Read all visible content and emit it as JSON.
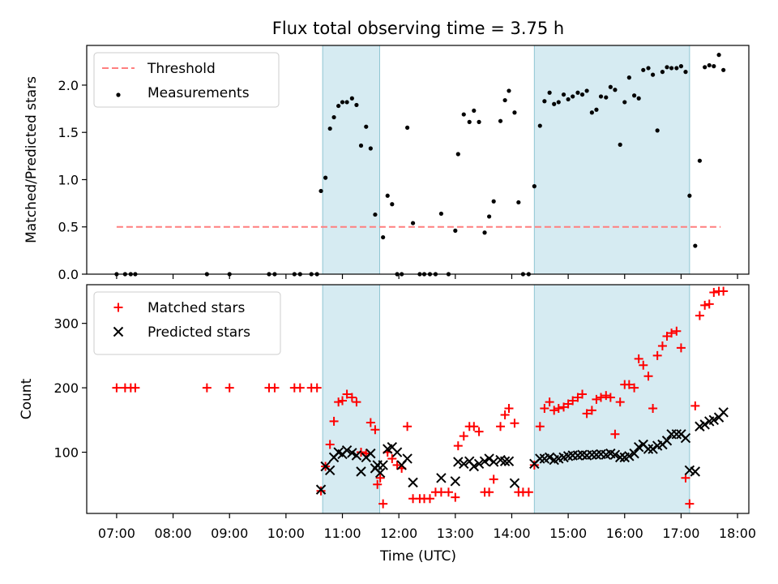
{
  "figure": {
    "title": "Flux total observing time = 3.75 h",
    "xlabel": "Time (UTC)",
    "x_ticks": [
      "07:00",
      "08:00",
      "09:00",
      "10:00",
      "11:00",
      "12:00",
      "13:00",
      "14:00",
      "15:00",
      "16:00",
      "17:00",
      "18:00"
    ],
    "x_tick_hours": [
      7,
      8,
      9,
      10,
      11,
      12,
      13,
      14,
      15,
      16,
      17,
      18
    ],
    "x_range_hours": [
      6.47,
      18.2
    ],
    "shaded_intervals_hours": [
      [
        10.65,
        11.66
      ],
      [
        14.4,
        17.15
      ]
    ],
    "shade_color": "#add8e6",
    "grid": false
  },
  "chart_data": [
    {
      "type": "scatter",
      "ylabel": "Matched/Predicted stars",
      "ylim": [
        0,
        2.42
      ],
      "y_ticks": [
        "0.0",
        "0.5",
        "1.0",
        "1.5",
        "2.0"
      ],
      "y_tick_values": [
        0,
        0.5,
        1.0,
        1.5,
        2.0
      ],
      "legend_position": "top-left",
      "threshold": {
        "name": "Threshold",
        "value": 0.5,
        "x_range": [
          7.0,
          17.7
        ],
        "color": "#ff7f7f",
        "style": "dashed"
      },
      "series": [
        {
          "name": "Measurements",
          "color": "#000000",
          "marker": "dot",
          "x": [
            7.0,
            7.15,
            7.25,
            7.33,
            8.6,
            9.0,
            9.7,
            9.8,
            10.15,
            10.25,
            10.45,
            10.55,
            10.62,
            10.7,
            10.78,
            10.85,
            10.93,
            11.0,
            11.08,
            11.17,
            11.25,
            11.33,
            11.42,
            11.5,
            11.58,
            11.72,
            11.8,
            11.88,
            11.97,
            12.05,
            12.15,
            12.25,
            12.37,
            12.45,
            12.55,
            12.65,
            12.75,
            12.88,
            13.0,
            13.05,
            13.15,
            13.25,
            13.33,
            13.42,
            13.52,
            13.6,
            13.68,
            13.8,
            13.88,
            13.95,
            14.05,
            14.12,
            14.2,
            14.3,
            14.4,
            14.5,
            14.58,
            14.67,
            14.75,
            14.83,
            14.92,
            15.0,
            15.08,
            15.17,
            15.25,
            15.33,
            15.42,
            15.5,
            15.58,
            15.67,
            15.75,
            15.83,
            15.92,
            16.0,
            16.08,
            16.17,
            16.25,
            16.33,
            16.42,
            16.5,
            16.58,
            16.67,
            16.75,
            16.83,
            16.92,
            17.0,
            17.08,
            17.15,
            17.25,
            17.33,
            17.42,
            17.5,
            17.58,
            17.67,
            17.75
          ],
          "y": [
            0,
            0,
            0,
            0,
            0,
            0,
            0,
            0,
            0,
            0,
            0,
            0,
            0.88,
            1.02,
            1.54,
            1.66,
            1.78,
            1.82,
            1.82,
            1.86,
            1.79,
            1.36,
            1.56,
            1.33,
            0.63,
            0.39,
            0.83,
            0.74,
            0,
            0,
            1.55,
            0.54,
            0,
            0,
            0,
            0,
            0.64,
            0,
            0.46,
            1.27,
            1.69,
            1.61,
            1.73,
            1.61,
            0.44,
            0.61,
            0.77,
            1.62,
            1.84,
            1.94,
            1.71,
            0.76,
            0,
            0,
            0.93,
            1.57,
            1.83,
            1.92,
            1.8,
            1.82,
            1.9,
            1.85,
            1.88,
            1.92,
            1.9,
            1.94,
            1.71,
            1.74,
            1.88,
            1.87,
            1.98,
            1.95,
            1.37,
            1.82,
            2.08,
            1.89,
            1.86,
            2.16,
            2.18,
            2.11,
            1.52,
            2.14,
            2.19,
            2.18,
            2.18,
            2.2,
            2.14,
            0.83,
            0.3,
            1.2,
            2.19,
            2.21,
            2.2,
            2.32,
            2.16
          ]
        }
      ]
    },
    {
      "type": "scatter",
      "ylabel": "Count",
      "ylim": [
        5,
        360
      ],
      "y_ticks": [
        "100",
        "200",
        "300"
      ],
      "y_tick_values": [
        100,
        200,
        300
      ],
      "legend_position": "top-left",
      "series": [
        {
          "name": "Matched stars",
          "color": "#ff0000",
          "marker": "plus",
          "x": [
            7.0,
            7.15,
            7.25,
            7.33,
            8.6,
            9.0,
            9.7,
            9.8,
            10.15,
            10.25,
            10.45,
            10.55,
            10.62,
            10.7,
            10.78,
            10.85,
            10.93,
            11.0,
            11.08,
            11.17,
            11.25,
            11.33,
            11.42,
            11.5,
            11.58,
            11.62,
            11.67,
            11.72,
            11.8,
            11.88,
            11.97,
            12.05,
            12.15,
            12.25,
            12.37,
            12.45,
            12.55,
            12.65,
            12.75,
            12.88,
            13.0,
            13.05,
            13.15,
            13.25,
            13.33,
            13.42,
            13.52,
            13.6,
            13.68,
            13.8,
            13.88,
            13.95,
            14.05,
            14.12,
            14.2,
            14.3,
            14.4,
            14.5,
            14.58,
            14.67,
            14.75,
            14.83,
            14.92,
            15.0,
            15.08,
            15.17,
            15.25,
            15.33,
            15.42,
            15.5,
            15.58,
            15.67,
            15.75,
            15.83,
            15.92,
            16.0,
            16.08,
            16.17,
            16.25,
            16.33,
            16.42,
            16.5,
            16.58,
            16.67,
            16.75,
            16.83,
            16.92,
            17.0,
            17.08,
            17.15,
            17.25,
            17.33,
            17.42,
            17.5,
            17.58,
            17.67,
            17.75
          ],
          "y": [
            200,
            200,
            200,
            200,
            200,
            200,
            200,
            200,
            200,
            200,
            200,
            200,
            40,
            78,
            112,
            148,
            178,
            180,
            190,
            185,
            178,
            100,
            98,
            146,
            135,
            50,
            60,
            20,
            100,
            90,
            80,
            75,
            140,
            28,
            28,
            28,
            28,
            38,
            38,
            38,
            30,
            110,
            125,
            140,
            140,
            132,
            38,
            38,
            58,
            140,
            158,
            168,
            145,
            38,
            38,
            38,
            80,
            140,
            168,
            178,
            165,
            168,
            170,
            175,
            180,
            185,
            190,
            160,
            165,
            182,
            185,
            188,
            185,
            128,
            178,
            205,
            205,
            200,
            245,
            235,
            218,
            168,
            250,
            265,
            280,
            285,
            288,
            262,
            60,
            20,
            172,
            312,
            328,
            330,
            348,
            350,
            350
          ],
          "markers_without_x_match": true
        },
        {
          "name": "Predicted stars",
          "color": "#000000",
          "marker": "x",
          "x": [
            10.62,
            10.7,
            10.78,
            10.85,
            10.93,
            11.0,
            11.08,
            11.17,
            11.25,
            11.33,
            11.42,
            11.5,
            11.58,
            11.62,
            11.67,
            11.72,
            11.8,
            11.88,
            11.97,
            12.05,
            12.15,
            12.25,
            12.75,
            13.0,
            13.05,
            13.15,
            13.25,
            13.33,
            13.42,
            13.52,
            13.6,
            13.68,
            13.8,
            13.88,
            13.95,
            14.05,
            14.4,
            14.5,
            14.58,
            14.67,
            14.75,
            14.83,
            14.92,
            15.0,
            15.08,
            15.17,
            15.25,
            15.33,
            15.42,
            15.5,
            15.58,
            15.67,
            15.75,
            15.83,
            15.92,
            16.0,
            16.08,
            16.17,
            16.25,
            16.33,
            16.42,
            16.5,
            16.58,
            16.67,
            16.75,
            16.83,
            16.92,
            17.0,
            17.08,
            17.15,
            17.25,
            17.33,
            17.42,
            17.5,
            17.58,
            17.67,
            17.75
          ],
          "y": [
            42,
            78,
            72,
            92,
            100,
            97,
            103,
            99,
            95,
            70,
            92,
            98,
            75,
            80,
            68,
            80,
            105,
            108,
            100,
            80,
            90,
            53,
            60,
            55,
            85,
            82,
            86,
            78,
            82,
            86,
            90,
            85,
            88,
            86,
            86,
            52,
            82,
            90,
            90,
            92,
            88,
            90,
            92,
            94,
            95,
            95,
            96,
            95,
            96,
            96,
            97,
            96,
            98,
            96,
            92,
            92,
            94,
            98,
            108,
            112,
            105,
            105,
            110,
            112,
            118,
            128,
            128,
            128,
            122,
            72,
            70,
            140,
            143,
            148,
            150,
            154,
            162
          ]
        }
      ]
    }
  ]
}
